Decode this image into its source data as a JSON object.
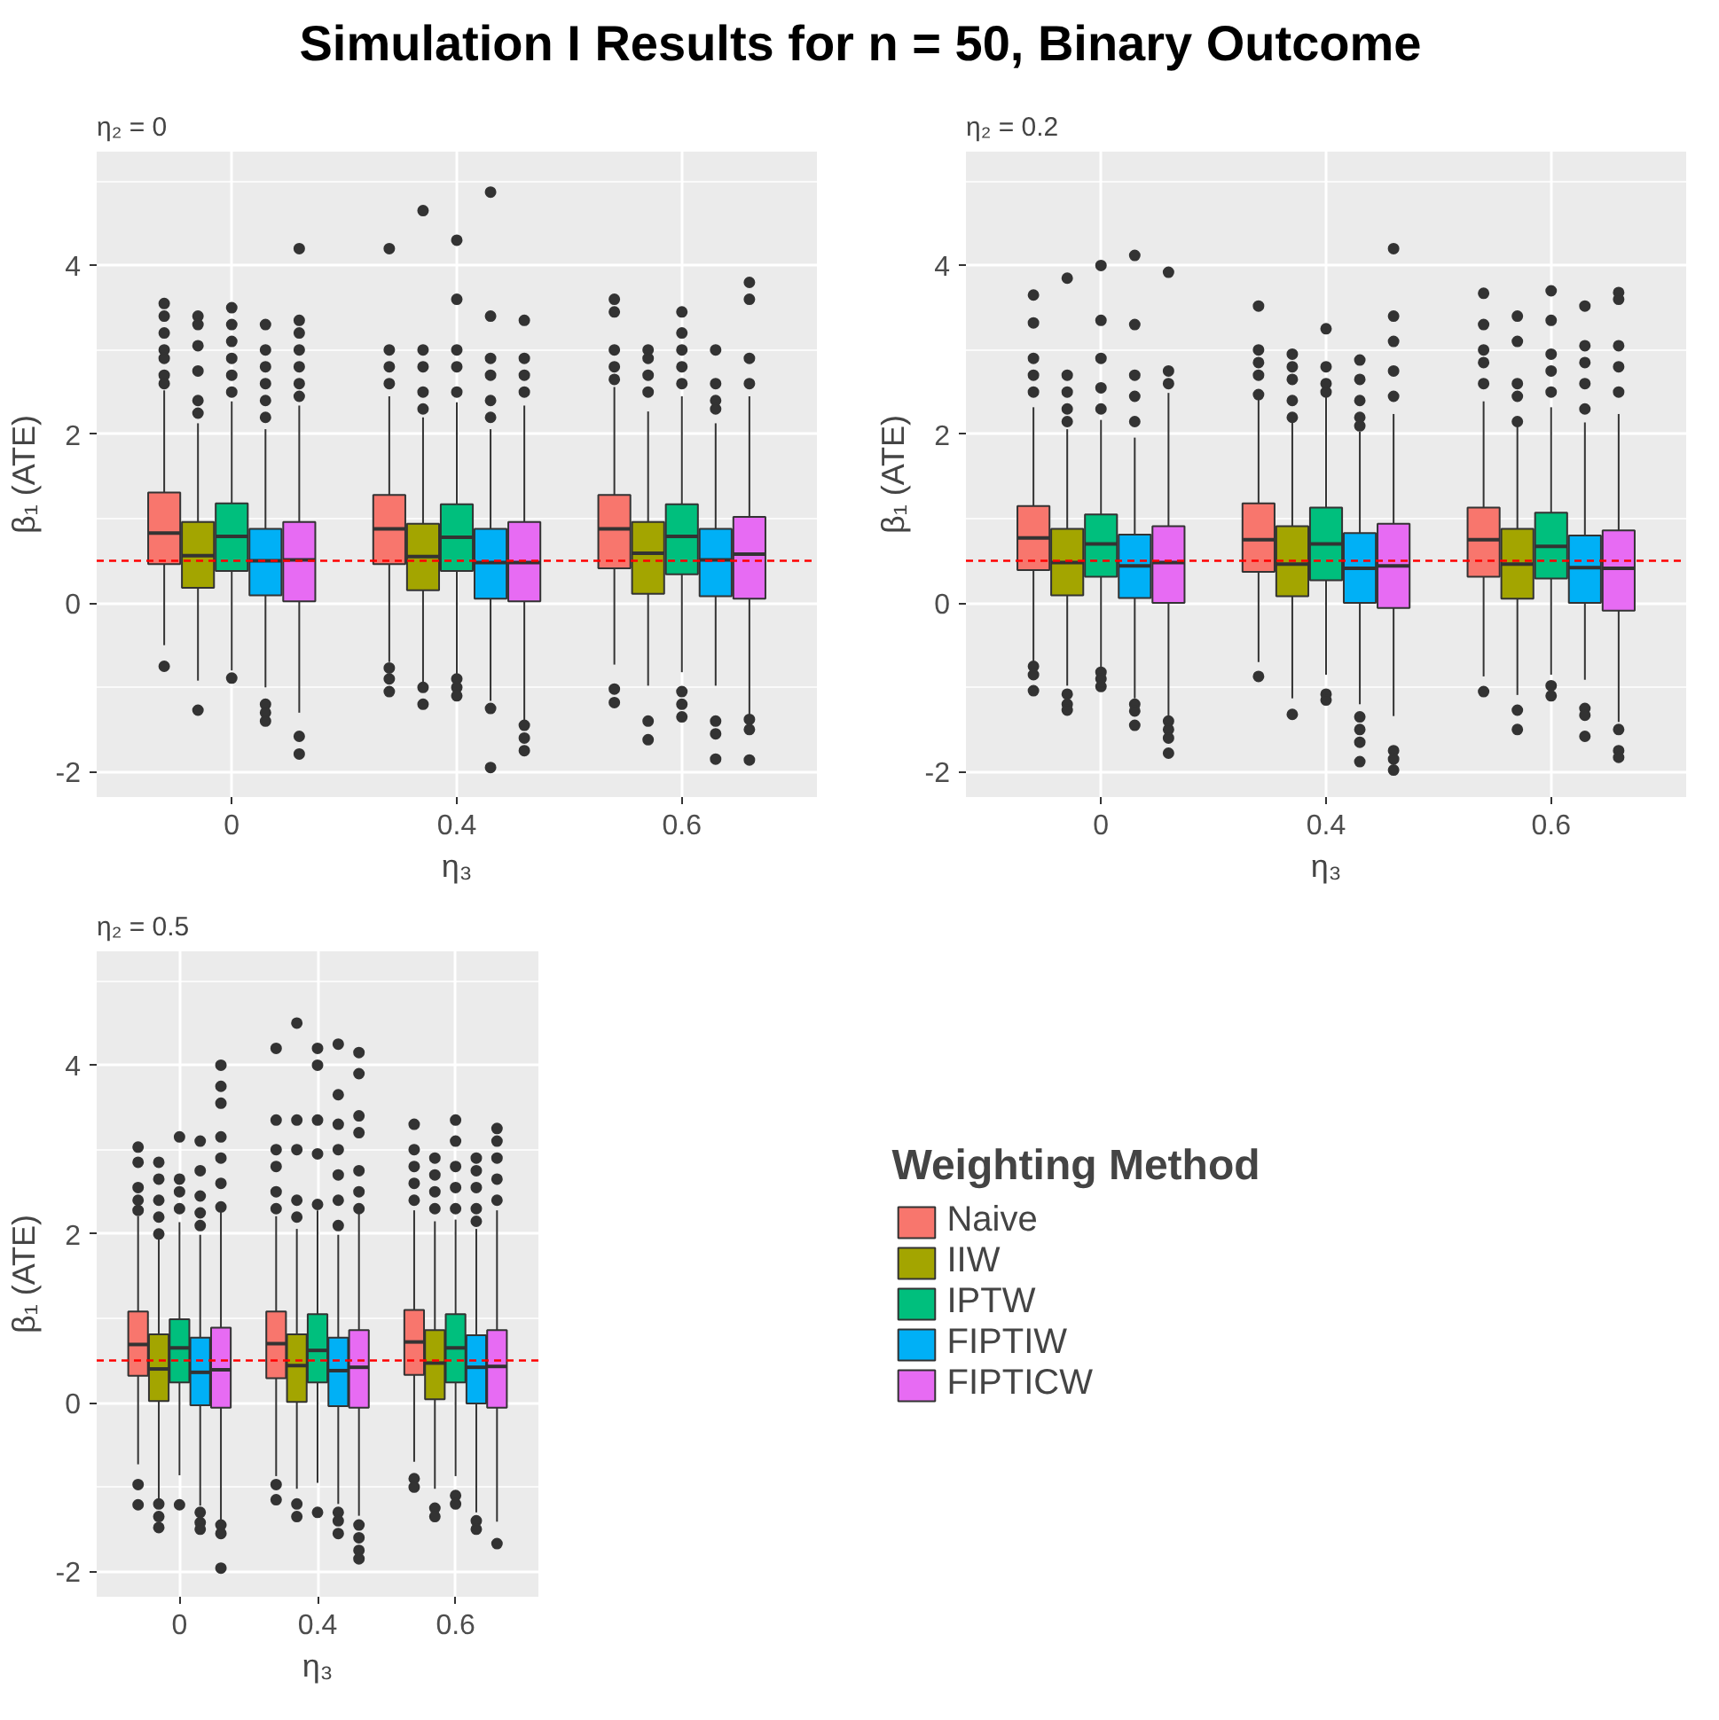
{
  "chart_data": [
    {
      "type": "box",
      "title": "Simulation I Results for n = 50, Binary Outcome",
      "subtitle": "η₂ = 0",
      "xlabel": "η₃",
      "ylabel": "β₁ (ATE)",
      "categories": [
        "0",
        "0.4",
        "0.6"
      ],
      "ylim": [
        -2.3,
        5.35
      ],
      "yticks": [
        -2,
        0,
        2,
        4
      ],
      "grid": true,
      "legend": false,
      "ref_lines": [
        {
          "axis": "y",
          "value": 0.5,
          "color": "#ff0000",
          "line_style": "dashed"
        }
      ],
      "series": [
        {
          "color": "#f8766d",
          "boxes": [
            {
              "low": -0.5,
              "q1": 0.46,
              "median": 0.83,
              "q3": 1.31,
              "high": 2.52,
              "outliers": [
                3.55,
                3.4,
                3.2,
                3.0,
                2.9,
                2.7,
                2.6,
                -0.75
              ]
            },
            {
              "low": -0.7,
              "q1": 0.46,
              "median": 0.88,
              "q3": 1.28,
              "high": 2.45,
              "outliers": [
                4.2,
                3.0,
                2.8,
                2.6,
                -0.77,
                -0.9,
                -1.05
              ]
            },
            {
              "low": -0.73,
              "q1": 0.41,
              "median": 0.88,
              "q3": 1.28,
              "high": 2.56,
              "outliers": [
                3.6,
                3.45,
                3.0,
                2.8,
                2.65,
                -1.02,
                -1.18
              ]
            }
          ]
        },
        {
          "color": "#a3a500",
          "boxes": [
            {
              "low": -0.92,
              "q1": 0.18,
              "median": 0.56,
              "q3": 0.96,
              "high": 2.13,
              "outliers": [
                3.4,
                3.3,
                3.05,
                2.75,
                2.4,
                2.25,
                -1.27
              ]
            },
            {
              "low": -0.96,
              "q1": 0.15,
              "median": 0.55,
              "q3": 0.94,
              "high": 2.2,
              "outliers": [
                4.65,
                3.0,
                2.8,
                2.5,
                2.3,
                -1.0,
                -1.2
              ]
            },
            {
              "low": -0.98,
              "q1": 0.11,
              "median": 0.59,
              "q3": 0.96,
              "high": 2.27,
              "outliers": [
                3.0,
                2.9,
                2.7,
                2.5,
                -1.4,
                -1.62
              ]
            }
          ]
        },
        {
          "color": "#00bf7d",
          "boxes": [
            {
              "low": -0.8,
              "q1": 0.38,
              "median": 0.79,
              "q3": 1.18,
              "high": 2.39,
              "outliers": [
                3.5,
                3.3,
                3.1,
                2.9,
                2.7,
                2.5,
                -0.89
              ]
            },
            {
              "low": -0.84,
              "q1": 0.38,
              "median": 0.78,
              "q3": 1.17,
              "high": 2.38,
              "outliers": [
                4.3,
                3.6,
                3.0,
                2.8,
                2.5,
                -0.9,
                -1.0,
                -1.1
              ]
            },
            {
              "low": -0.82,
              "q1": 0.34,
              "median": 0.79,
              "q3": 1.17,
              "high": 2.45,
              "outliers": [
                3.45,
                3.2,
                3.0,
                2.8,
                2.6,
                -1.05,
                -1.2,
                -1.35
              ]
            }
          ]
        },
        {
          "color": "#00b0f6",
          "boxes": [
            {
              "low": -1.0,
              "q1": 0.09,
              "median": 0.5,
              "q3": 0.88,
              "high": 2.06,
              "outliers": [
                3.3,
                3.0,
                2.8,
                2.6,
                2.4,
                2.2,
                -1.2,
                -1.3,
                -1.4
              ]
            },
            {
              "low": -1.16,
              "q1": 0.05,
              "median": 0.48,
              "q3": 0.88,
              "high": 2.06,
              "outliers": [
                4.87,
                3.4,
                2.9,
                2.7,
                2.4,
                2.2,
                -1.25,
                -1.95
              ]
            },
            {
              "low": -0.98,
              "q1": 0.08,
              "median": 0.51,
              "q3": 0.88,
              "high": 2.13,
              "outliers": [
                3.0,
                2.6,
                2.4,
                2.3,
                -1.4,
                -1.55,
                -1.85
              ]
            }
          ]
        },
        {
          "color": "#e76bf3",
          "boxes": [
            {
              "low": -1.3,
              "q1": 0.02,
              "median": 0.51,
              "q3": 0.96,
              "high": 2.34,
              "outliers": [
                4.2,
                3.35,
                3.2,
                3.0,
                2.8,
                2.6,
                2.45,
                -1.58,
                -1.79
              ]
            },
            {
              "low": -1.4,
              "q1": 0.02,
              "median": 0.48,
              "q3": 0.96,
              "high": 2.34,
              "outliers": [
                3.35,
                2.9,
                2.7,
                2.5,
                -1.45,
                -1.6,
                -1.75
              ]
            },
            {
              "low": -1.34,
              "q1": 0.05,
              "median": 0.58,
              "q3": 1.02,
              "high": 2.45,
              "outliers": [
                3.8,
                3.6,
                2.9,
                2.6,
                -1.38,
                -1.5,
                -1.86
              ]
            }
          ]
        }
      ]
    },
    {
      "type": "box",
      "subtitle": "η₂ = 0.2",
      "xlabel": "η₃",
      "ylabel": "β₁ (ATE)",
      "categories": [
        "0",
        "0.4",
        "0.6"
      ],
      "ylim": [
        -2.3,
        5.35
      ],
      "yticks": [
        -2,
        0,
        2,
        4
      ],
      "grid": true,
      "legend": false,
      "ref_lines": [
        {
          "axis": "y",
          "value": 0.5,
          "color": "#ff0000",
          "line_style": "dashed"
        }
      ],
      "series": [
        {
          "color": "#f8766d",
          "boxes": [
            {
              "low": -0.7,
              "q1": 0.39,
              "median": 0.77,
              "q3": 1.15,
              "high": 2.32,
              "outliers": [
                3.65,
                3.32,
                2.9,
                2.7,
                2.5,
                -0.75,
                -0.85,
                -1.04
              ]
            },
            {
              "low": -0.7,
              "q1": 0.37,
              "median": 0.75,
              "q3": 1.18,
              "high": 2.42,
              "outliers": [
                3.52,
                3.0,
                2.85,
                2.7,
                2.47,
                -0.87
              ]
            },
            {
              "low": -0.87,
              "q1": 0.31,
              "median": 0.75,
              "q3": 1.13,
              "high": 2.39,
              "outliers": [
                3.67,
                3.3,
                3.0,
                2.85,
                2.6,
                -1.05
              ]
            }
          ]
        },
        {
          "color": "#a3a500",
          "boxes": [
            {
              "low": -0.98,
              "q1": 0.09,
              "median": 0.48,
              "q3": 0.88,
              "high": 2.06,
              "outliers": [
                3.85,
                2.7,
                2.5,
                2.3,
                2.15,
                -1.08,
                -1.2,
                -1.27
              ]
            },
            {
              "low": -1.13,
              "q1": 0.08,
              "median": 0.46,
              "q3": 0.91,
              "high": 2.14,
              "outliers": [
                2.95,
                2.8,
                2.65,
                2.4,
                2.2,
                -1.32
              ]
            },
            {
              "low": -1.09,
              "q1": 0.05,
              "median": 0.46,
              "q3": 0.88,
              "high": 2.14,
              "outliers": [
                3.4,
                3.1,
                2.6,
                2.45,
                2.15,
                -1.27,
                -1.5
              ]
            }
          ]
        },
        {
          "color": "#00bf7d",
          "boxes": [
            {
              "low": -0.77,
              "q1": 0.31,
              "median": 0.7,
              "q3": 1.05,
              "high": 2.17,
              "outliers": [
                4.0,
                3.35,
                2.9,
                2.55,
                2.3,
                -0.82,
                -0.9,
                -0.99
              ]
            },
            {
              "low": -0.85,
              "q1": 0.27,
              "median": 0.7,
              "q3": 1.13,
              "high": 2.46,
              "outliers": [
                3.25,
                2.8,
                2.6,
                2.5,
                -1.08,
                -1.15
              ]
            },
            {
              "low": -0.85,
              "q1": 0.29,
              "median": 0.67,
              "q3": 1.07,
              "high": 2.32,
              "outliers": [
                3.7,
                3.35,
                2.95,
                2.75,
                2.5,
                -0.98,
                -1.1
              ]
            }
          ]
        },
        {
          "color": "#00b0f6",
          "boxes": [
            {
              "low": -1.13,
              "q1": 0.06,
              "median": 0.44,
              "q3": 0.81,
              "high": 1.96,
              "outliers": [
                4.12,
                3.3,
                2.7,
                2.45,
                2.15,
                -1.2,
                -1.28,
                -1.45
              ]
            },
            {
              "low": -1.2,
              "q1": 0.0,
              "median": 0.41,
              "q3": 0.83,
              "high": 2.03,
              "outliers": [
                2.88,
                2.65,
                2.4,
                2.2,
                2.1,
                -1.35,
                -1.5,
                -1.65,
                -1.88
              ]
            },
            {
              "low": -0.91,
              "q1": 0.0,
              "median": 0.42,
              "q3": 0.8,
              "high": 2.14,
              "outliers": [
                3.52,
                3.05,
                2.85,
                2.6,
                2.3,
                -1.25,
                -1.33,
                -1.58
              ]
            }
          ]
        },
        {
          "color": "#e76bf3",
          "boxes": [
            {
              "low": -1.34,
              "q1": 0.0,
              "median": 0.48,
              "q3": 0.91,
              "high": 2.49,
              "outliers": [
                3.92,
                2.75,
                2.6,
                -1.4,
                -1.5,
                -1.6,
                -1.78
              ]
            },
            {
              "low": -1.34,
              "q1": -0.06,
              "median": 0.44,
              "q3": 0.94,
              "high": 2.24,
              "outliers": [
                4.2,
                3.4,
                3.1,
                2.75,
                2.45,
                -1.75,
                -1.85,
                -1.98
              ]
            },
            {
              "low": -1.41,
              "q1": -0.09,
              "median": 0.41,
              "q3": 0.86,
              "high": 2.24,
              "outliers": [
                3.68,
                3.6,
                3.05,
                2.8,
                2.5,
                -1.5,
                -1.75,
                -1.83
              ]
            }
          ]
        }
      ]
    },
    {
      "type": "box",
      "subtitle": "η₂ = 0.5",
      "xlabel": "η₃",
      "ylabel": "β₁ (ATE)",
      "categories": [
        "0",
        "0.4",
        "0.6"
      ],
      "ylim": [
        -2.3,
        5.35
      ],
      "yticks": [
        -2,
        0,
        2,
        4
      ],
      "grid": true,
      "legend": "right",
      "legend_title": "Weighting Method",
      "ref_lines": [
        {
          "axis": "y",
          "value": 0.5,
          "color": "#ff0000",
          "line_style": "dashed"
        }
      ],
      "series": [
        {
          "name": "Naive",
          "color": "#f8766d",
          "boxes": [
            {
              "low": -0.73,
              "q1": 0.32,
              "median": 0.69,
              "q3": 1.08,
              "high": 2.21,
              "outliers": [
                3.03,
                2.85,
                2.55,
                2.4,
                2.28,
                -0.97,
                -1.21
              ]
            },
            {
              "low": -0.87,
              "q1": 0.29,
              "median": 0.7,
              "q3": 1.08,
              "high": 2.21,
              "outliers": [
                4.2,
                3.35,
                3.0,
                2.8,
                2.5,
                2.3,
                -0.97,
                -1.15
              ]
            },
            {
              "low": -0.7,
              "q1": 0.33,
              "median": 0.72,
              "q3": 1.1,
              "high": 2.28,
              "outliers": [
                3.3,
                3.0,
                2.8,
                2.6,
                2.4,
                -0.9,
                -1.0
              ]
            }
          ]
        },
        {
          "name": "IIW",
          "color": "#a3a500",
          "boxes": [
            {
              "low": -1.15,
              "q1": 0.02,
              "median": 0.4,
              "q3": 0.81,
              "high": 1.96,
              "outliers": [
                2.85,
                2.65,
                2.4,
                2.2,
                2.0,
                -1.2,
                -1.35,
                -1.48
              ]
            },
            {
              "low": -1.02,
              "q1": 0.01,
              "median": 0.44,
              "q3": 0.81,
              "high": 2.06,
              "outliers": [
                4.5,
                3.35,
                3.0,
                2.4,
                2.2,
                -1.2,
                -1.35
              ]
            },
            {
              "low": -1.02,
              "q1": 0.04,
              "median": 0.47,
              "q3": 0.86,
              "high": 2.15,
              "outliers": [
                2.9,
                2.7,
                2.5,
                2.3,
                -1.25,
                -1.35
              ]
            }
          ]
        },
        {
          "name": "IPTW",
          "color": "#00bf7d",
          "boxes": [
            {
              "low": -0.86,
              "q1": 0.24,
              "median": 0.65,
              "q3": 0.99,
              "high": 2.14,
              "outliers": [
                3.15,
                2.65,
                2.5,
                2.3,
                -1.21
              ]
            },
            {
              "low": -0.95,
              "q1": 0.24,
              "median": 0.62,
              "q3": 1.05,
              "high": 2.28,
              "outliers": [
                4.2,
                4.0,
                3.35,
                2.95,
                2.35,
                -1.3
              ]
            },
            {
              "low": -0.87,
              "q1": 0.24,
              "median": 0.65,
              "q3": 1.05,
              "high": 2.17,
              "outliers": [
                3.35,
                3.1,
                2.8,
                2.55,
                2.3,
                -1.1,
                -1.2
              ]
            }
          ]
        },
        {
          "name": "FIPTIW",
          "color": "#00b0f6",
          "boxes": [
            {
              "low": -1.22,
              "q1": -0.03,
              "median": 0.36,
              "q3": 0.77,
              "high": 1.99,
              "outliers": [
                3.1,
                2.75,
                2.45,
                2.25,
                2.1,
                -1.3,
                -1.42,
                -1.5
              ]
            },
            {
              "low": -1.2,
              "q1": -0.04,
              "median": 0.38,
              "q3": 0.77,
              "high": 1.99,
              "outliers": [
                4.25,
                3.65,
                3.3,
                3.0,
                2.7,
                2.4,
                2.1,
                -1.3,
                -1.4,
                -1.55
              ]
            },
            {
              "low": -1.3,
              "q1": -0.01,
              "median": 0.42,
              "q3": 0.8,
              "high": 2.06,
              "outliers": [
                2.9,
                2.75,
                2.55,
                2.3,
                2.15,
                -1.4,
                -1.5
              ]
            }
          ]
        },
        {
          "name": "FIPTICW",
          "color": "#e76bf3",
          "boxes": [
            {
              "low": -1.41,
              "q1": -0.06,
              "median": 0.39,
              "q3": 0.89,
              "high": 2.28,
              "outliers": [
                4.0,
                3.75,
                3.55,
                3.15,
                2.9,
                2.6,
                2.32,
                -1.45,
                -1.55,
                -1.96
              ]
            },
            {
              "low": -1.34,
              "q1": -0.06,
              "median": 0.42,
              "q3": 0.86,
              "high": 2.24,
              "outliers": [
                4.15,
                3.9,
                3.4,
                3.2,
                2.75,
                2.5,
                2.3,
                -1.45,
                -1.6,
                -1.75,
                -1.85
              ]
            },
            {
              "low": -1.41,
              "q1": -0.06,
              "median": 0.43,
              "q3": 0.86,
              "high": 2.28,
              "outliers": [
                3.25,
                3.1,
                2.9,
                2.65,
                2.4,
                -1.67
              ]
            }
          ]
        }
      ]
    }
  ]
}
